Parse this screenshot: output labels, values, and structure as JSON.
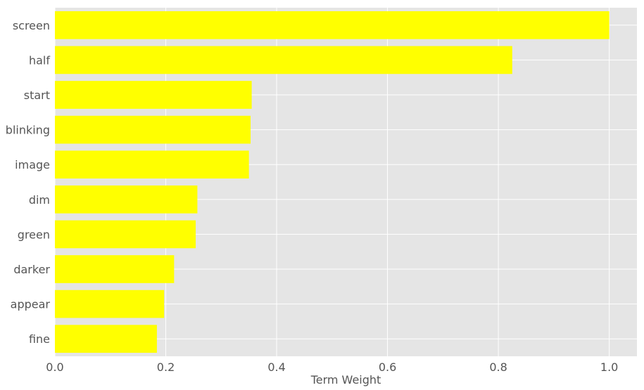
{
  "chart_data": {
    "type": "bar",
    "orientation": "horizontal",
    "categories": [
      "screen",
      "half",
      "start",
      "blinking",
      "image",
      "dim",
      "green",
      "darker",
      "appear",
      "fine"
    ],
    "values": [
      1.0,
      0.825,
      0.355,
      0.353,
      0.35,
      0.257,
      0.254,
      0.215,
      0.197,
      0.184
    ],
    "xlabel": "Term Weight",
    "ylabel": "",
    "title": "",
    "xlim": [
      0,
      1.05
    ],
    "xticks": [
      0.0,
      0.2,
      0.4,
      0.6,
      0.8,
      1.0
    ],
    "xtick_labels": [
      "0.0",
      "0.2",
      "0.4",
      "0.6",
      "0.8",
      "1.0"
    ],
    "grid": true,
    "bar_color": "#ffff00",
    "background_color": "#e5e5e5",
    "grid_color": "#ffffff",
    "text_color": "#555555"
  }
}
